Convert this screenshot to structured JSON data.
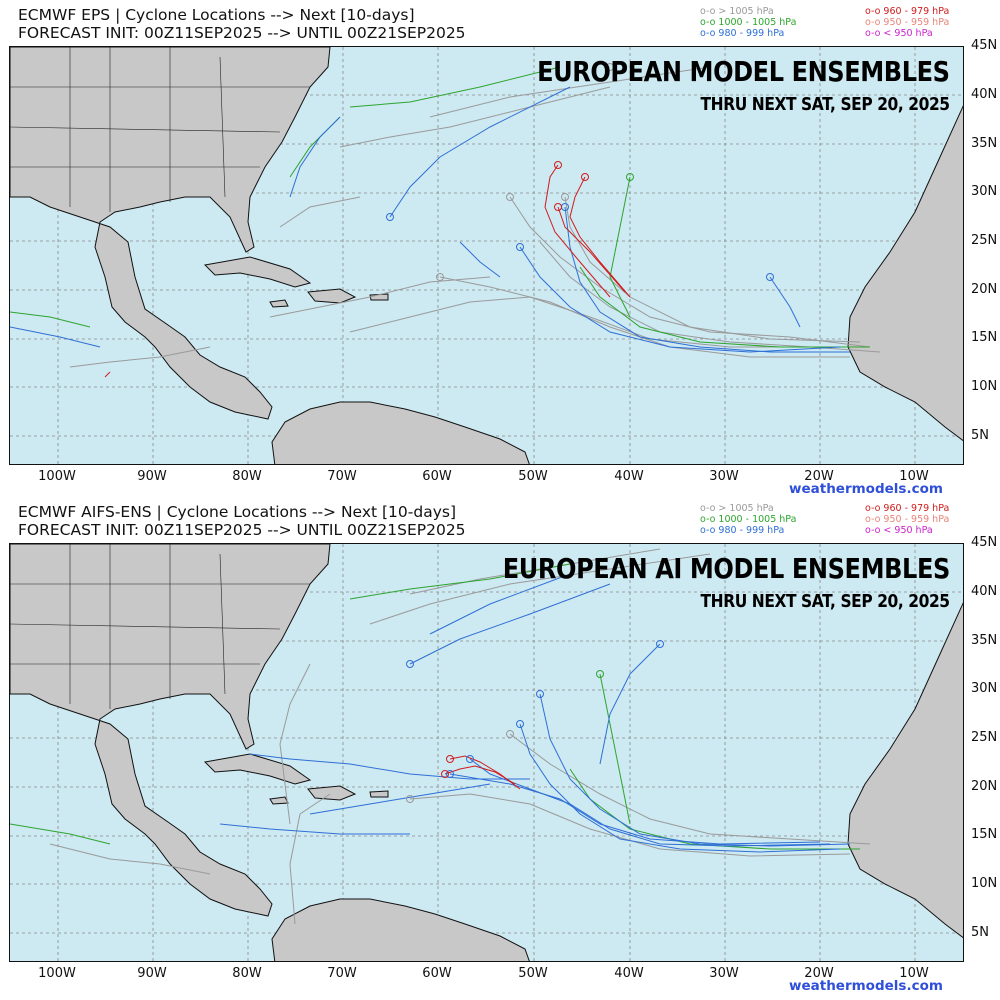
{
  "panels": [
    {
      "header_line1": "ECMWF EPS | Cyclone Locations --> Next [10-days]",
      "header_line2": "FORECAST INIT: 00Z11SEP2025 --> UNTIL 00Z21SEP2025",
      "title": "EUROPEAN MODEL ENSEMBLES",
      "subtitle": "THRU NEXT SAT, SEP 20, 2025"
    },
    {
      "header_line1": "ECMWF AIFS-ENS | Cyclone Locations --> Next [10-days]",
      "header_line2": "FORECAST INIT: 00Z11SEP2025 --> UNTIL 00Z21SEP2025",
      "title": "EUROPEAN AI MODEL ENSEMBLES",
      "subtitle": "THRU NEXT SAT, SEP 20, 2025"
    }
  ],
  "legend": [
    {
      "label": "o-o > 1005 hPa",
      "color": "#9a9a9a"
    },
    {
      "label": "o-o 1000 - 1005 hPa",
      "color": "#2ea52e"
    },
    {
      "label": "o-o 980 - 999 hPa",
      "color": "#2f6fd6"
    },
    {
      "label": "o-o 960 - 979 hPa",
      "color": "#d01c1c"
    },
    {
      "label": "o-o 950 - 959 hPa",
      "color": "#e8857a"
    },
    {
      "label": "o-o < 950 hPa",
      "color": "#cc22cc"
    }
  ],
  "latitude_labels": [
    "45N",
    "40N",
    "35N",
    "30N",
    "25N",
    "20N",
    "15N",
    "10N",
    "5N"
  ],
  "longitude_labels": [
    "100W",
    "90W",
    "80W",
    "70W",
    "60W",
    "50W",
    "40W",
    "30W",
    "20W",
    "10W"
  ],
  "credit": "weathermodels.com",
  "colors": {
    "ocean": "#cde9f2",
    "land": "#c8c8c8",
    "grid": "#888888"
  }
}
